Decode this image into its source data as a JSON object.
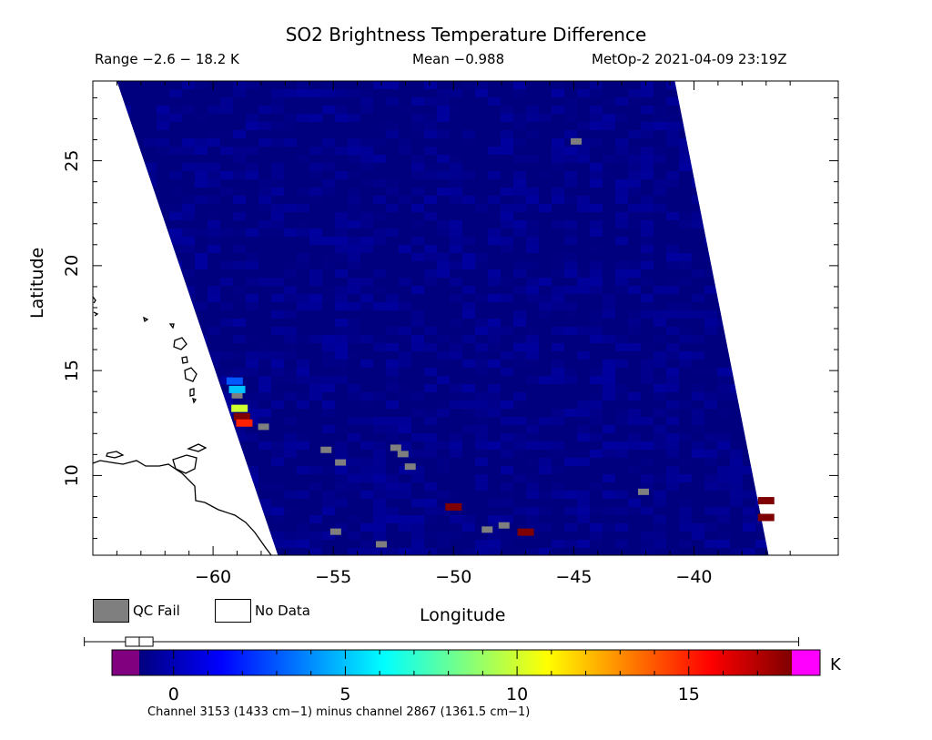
{
  "header": {
    "title": "SO2 Brightness Temperature Difference",
    "range": "Range −2.6 − 18.2 K",
    "mean": "Mean −0.988",
    "satellite": "MetOp-2 2021-04-09 23:19Z"
  },
  "legend": {
    "qc_fail": "QC Fail",
    "no_data": "No Data",
    "qc_color": "#7f7f7f"
  },
  "colorbar": {
    "units": "K",
    "subtitle": "Channel 3153 (1433 cm−1) minus channel 2867 (1361.5 cm−1)",
    "under_color": "#800080",
    "over_color": "#ff00ff",
    "stops": [
      "#00007f",
      "#0000ff",
      "#007fff",
      "#00ffff",
      "#7fff7f",
      "#ffff00",
      "#ff7f00",
      "#ff0000",
      "#7f0000"
    ],
    "range": [
      -1,
      18
    ],
    "box_stats": {
      "min": -2.6,
      "q1": -1.4,
      "median": -1.0,
      "q3": -0.6,
      "max": 18.2
    }
  },
  "chart_data": {
    "type": "heatmap",
    "title": "SO2 Brightness Temperature Difference",
    "xlabel": "Longitude",
    "ylabel": "Latitude",
    "xlim": [
      -65,
      -34
    ],
    "ylim": [
      6.2,
      28.8
    ],
    "x_ticks": [
      -60,
      -55,
      -50,
      -45,
      -40
    ],
    "x_tick_labels": [
      "−60",
      "−55",
      "−50",
      "−45",
      "−40"
    ],
    "y_ticks": [
      10,
      15,
      20,
      25
    ],
    "y_tick_labels": [
      "10",
      "15",
      "20",
      "25"
    ],
    "colorbar_ticks": [
      0,
      5,
      10,
      15
    ],
    "colorbar_tick_labels": [
      "0",
      "5",
      "10",
      "15"
    ],
    "swath": {
      "top_left_lon": -64.0,
      "bottom_left_lon": -57.3,
      "top_right_lon": -40.8,
      "bottom_right_lon": -36.9
    },
    "background_value": -1.0,
    "hotspots": [
      {
        "lon": -59.1,
        "lat": 14.5,
        "value": 3.0
      },
      {
        "lon": -59.0,
        "lat": 14.1,
        "value": 5.0
      },
      {
        "lon": -58.9,
        "lat": 13.2,
        "value": 10.0
      },
      {
        "lon": -58.8,
        "lat": 12.8,
        "value": 18.0
      },
      {
        "lon": -58.7,
        "lat": 12.5,
        "value": 15.0
      },
      {
        "lon": -50.0,
        "lat": 8.5,
        "value": 18.0
      },
      {
        "lon": -47.0,
        "lat": 7.3,
        "value": 18.0
      },
      {
        "lon": -37.0,
        "lat": 8.8,
        "value": 18.0
      },
      {
        "lon": -37.0,
        "lat": 8.0,
        "value": 18.0
      }
    ],
    "qc_fail": [
      {
        "lon": -59.0,
        "lat": 13.8
      },
      {
        "lon": -57.9,
        "lat": 12.3
      },
      {
        "lon": -55.3,
        "lat": 11.2
      },
      {
        "lon": -54.7,
        "lat": 10.6
      },
      {
        "lon": -52.4,
        "lat": 11.3
      },
      {
        "lon": -52.1,
        "lat": 11.0
      },
      {
        "lon": -51.8,
        "lat": 10.4
      },
      {
        "lon": -44.9,
        "lat": 25.9
      },
      {
        "lon": -42.1,
        "lat": 9.2
      },
      {
        "lon": -54.9,
        "lat": 7.3
      },
      {
        "lon": -53.0,
        "lat": 6.7
      },
      {
        "lon": -48.6,
        "lat": 7.4
      },
      {
        "lon": -47.9,
        "lat": 7.6
      }
    ]
  }
}
